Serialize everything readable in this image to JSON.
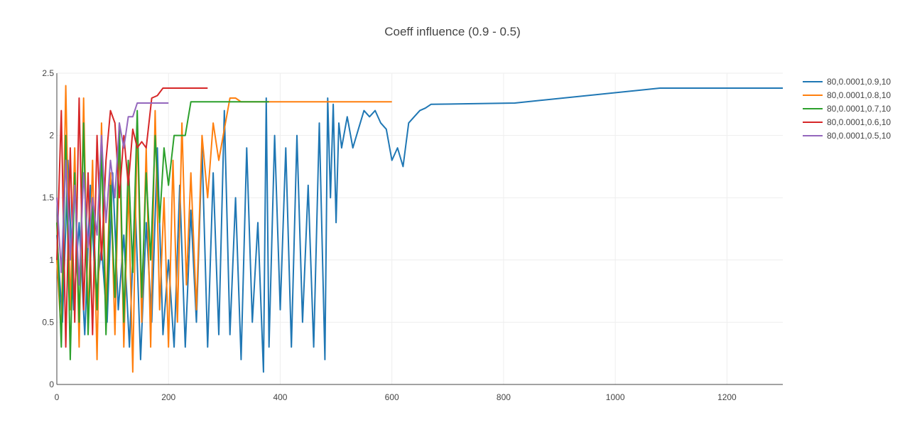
{
  "chart_data": {
    "type": "line",
    "title": "Coeff influence (0.9 - 0.5)",
    "xlabel": "",
    "ylabel": "",
    "xlim": [
      0,
      1300
    ],
    "ylim": [
      0,
      2.5
    ],
    "xticks": [
      0,
      200,
      400,
      600,
      800,
      1000,
      1200
    ],
    "yticks": [
      0,
      0.5,
      1,
      1.5,
      2,
      2.5
    ],
    "xtick_labels": [
      "0",
      "200",
      "400",
      "600",
      "800",
      "1000",
      "1200"
    ],
    "ytick_labels": [
      "0",
      "0.5",
      "1",
      "1.5",
      "2",
      "2.5"
    ],
    "grid": true,
    "legend_position": "top-right",
    "series": [
      {
        "name": "80,0.0001,0.9,10",
        "color": "#1f77b4",
        "x": [
          0,
          10,
          20,
          30,
          40,
          50,
          60,
          70,
          80,
          90,
          100,
          110,
          120,
          130,
          140,
          150,
          160,
          170,
          180,
          190,
          200,
          210,
          220,
          230,
          240,
          250,
          260,
          270,
          280,
          290,
          300,
          310,
          320,
          330,
          340,
          350,
          360,
          370,
          375,
          380,
          390,
          400,
          410,
          420,
          430,
          440,
          450,
          460,
          470,
          480,
          485,
          490,
          495,
          500,
          505,
          510,
          520,
          530,
          540,
          550,
          560,
          570,
          580,
          590,
          600,
          610,
          620,
          630,
          640,
          650,
          660,
          670,
          820,
          1080,
          1300
        ],
        "y": [
          1.2,
          0.5,
          1.8,
          0.6,
          1.3,
          0.4,
          1.6,
          0.7,
          1.1,
          0.5,
          1.7,
          0.6,
          1.2,
          0.3,
          1.5,
          0.2,
          1.3,
          0.5,
          1.9,
          0.4,
          1.0,
          0.3,
          1.6,
          0.3,
          1.4,
          0.5,
          1.9,
          0.3,
          1.7,
          0.4,
          2.2,
          0.4,
          1.5,
          0.2,
          1.9,
          0.5,
          1.3,
          0.1,
          2.3,
          0.3,
          2.0,
          0.6,
          1.9,
          0.3,
          2.0,
          0.5,
          1.6,
          0.3,
          2.1,
          0.2,
          2.3,
          1.5,
          2.25,
          1.3,
          2.1,
          1.9,
          2.15,
          1.9,
          2.05,
          2.2,
          2.15,
          2.2,
          2.1,
          2.05,
          1.8,
          1.9,
          1.75,
          2.1,
          2.15,
          2.2,
          2.22,
          2.25,
          2.26,
          2.38,
          2.38
        ]
      },
      {
        "name": "80,0.0001,0.8,10",
        "color": "#ff7f0e",
        "x": [
          0,
          8,
          16,
          24,
          32,
          40,
          48,
          56,
          64,
          72,
          80,
          88,
          96,
          104,
          112,
          120,
          128,
          136,
          144,
          152,
          160,
          168,
          176,
          184,
          192,
          200,
          208,
          216,
          224,
          232,
          240,
          250,
          260,
          270,
          280,
          290,
          300,
          310,
          320,
          330,
          600
        ],
        "y": [
          1.0,
          0.4,
          2.4,
          0.6,
          1.9,
          0.3,
          2.3,
          0.5,
          1.8,
          0.2,
          2.1,
          0.6,
          1.7,
          0.4,
          2.0,
          0.3,
          1.6,
          0.1,
          2.1,
          0.5,
          1.9,
          0.3,
          2.2,
          0.6,
          1.5,
          0.3,
          1.8,
          0.5,
          2.1,
          0.8,
          1.7,
          0.6,
          2.0,
          1.5,
          2.1,
          1.8,
          2.05,
          2.3,
          2.3,
          2.27,
          2.27
        ]
      },
      {
        "name": "80,0.0001,0.7,10",
        "color": "#2ca02c",
        "x": [
          0,
          8,
          16,
          24,
          32,
          40,
          48,
          56,
          64,
          72,
          80,
          88,
          96,
          104,
          112,
          120,
          128,
          136,
          144,
          152,
          160,
          168,
          176,
          184,
          192,
          200,
          210,
          220,
          230,
          240,
          380
        ],
        "y": [
          1.3,
          0.3,
          2.0,
          0.2,
          1.7,
          0.5,
          2.1,
          0.4,
          1.5,
          0.6,
          1.9,
          0.4,
          1.6,
          0.7,
          2.1,
          0.5,
          1.8,
          0.9,
          2.2,
          0.7,
          1.7,
          1.0,
          2.0,
          1.3,
          1.9,
          1.6,
          2.0,
          2.0,
          2.0,
          2.27,
          2.27
        ]
      },
      {
        "name": "80,0.0001,0.6,10",
        "color": "#d62728",
        "x": [
          0,
          8,
          16,
          24,
          32,
          40,
          48,
          56,
          64,
          72,
          80,
          88,
          96,
          104,
          112,
          120,
          128,
          136,
          144,
          152,
          160,
          170,
          180,
          190,
          200,
          270
        ],
        "y": [
          1.0,
          2.2,
          0.3,
          1.9,
          0.5,
          2.3,
          0.6,
          1.7,
          0.4,
          2.0,
          1.0,
          1.8,
          2.2,
          2.1,
          1.5,
          2.0,
          1.6,
          2.05,
          1.9,
          1.95,
          1.9,
          2.3,
          2.32,
          2.38,
          2.38,
          2.38
        ]
      },
      {
        "name": "80,0.0001,0.5,10",
        "color": "#9467bd",
        "x": [
          0,
          8,
          16,
          24,
          32,
          40,
          48,
          56,
          64,
          72,
          80,
          88,
          96,
          104,
          112,
          120,
          128,
          136,
          144,
          152,
          160,
          200
        ],
        "y": [
          1.5,
          0.9,
          1.8,
          1.0,
          1.6,
          0.8,
          1.7,
          1.1,
          1.5,
          1.2,
          2.0,
          1.3,
          1.8,
          1.5,
          2.1,
          1.9,
          2.15,
          2.15,
          2.26,
          2.26,
          2.26,
          2.26
        ]
      }
    ]
  }
}
